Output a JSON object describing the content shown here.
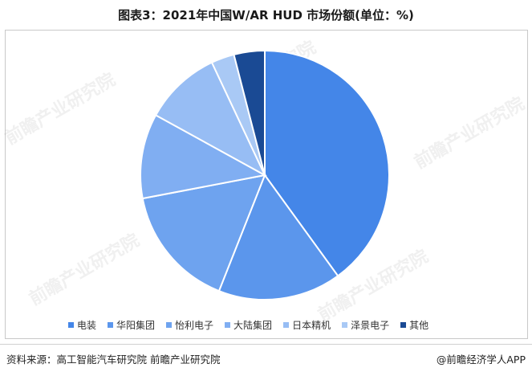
{
  "title": "图表3：2021年中国W/AR HUD 市场份额(单位：%)",
  "footer": {
    "source": "资料来源：高工智能汽车研究院 前瞻产业研究院",
    "credit": "@前瞻经济学人APP"
  },
  "watermark": {
    "text": "前瞻产业研究院"
  },
  "chart_data": {
    "type": "pie",
    "title": "图表3：2021年中国W/AR HUD 市场份额(单位：%)",
    "unit": "%",
    "legend_position": "bottom",
    "labels": [
      "电装",
      "华阳集团",
      "怡利电子",
      "大陆集团",
      "日本精机",
      "泽景电子",
      "其他"
    ],
    "values": [
      40,
      16,
      16,
      11,
      10,
      3,
      4
    ],
    "colors": [
      "#4486e8",
      "#5b96ec",
      "#6ea3ef",
      "#80aef2",
      "#97bdf4",
      "#a9c9f5",
      "#1a4a94"
    ]
  }
}
